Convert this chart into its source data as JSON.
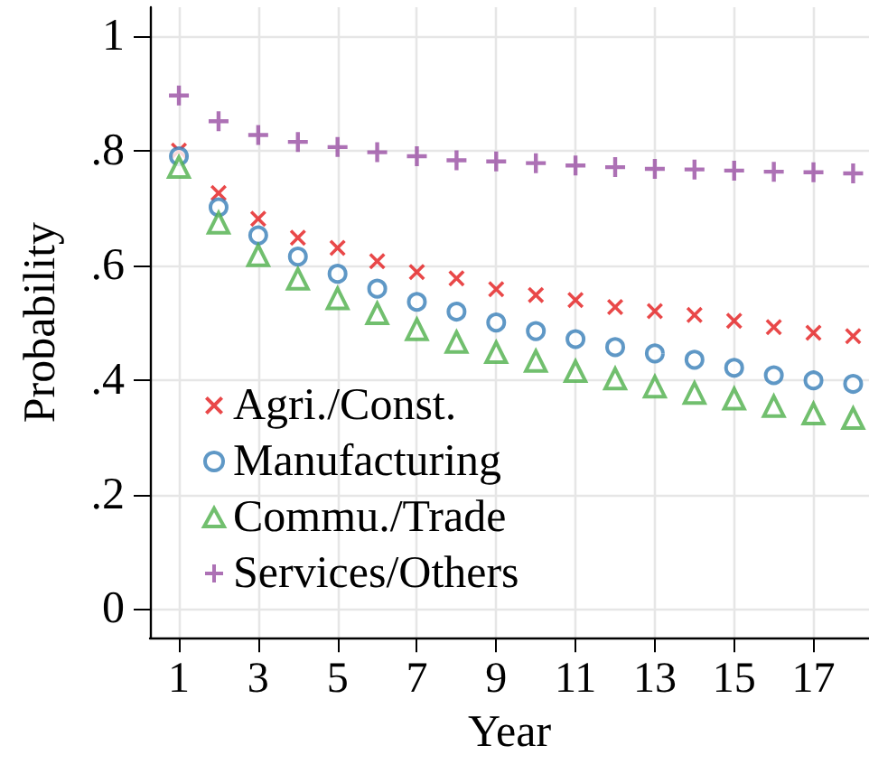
{
  "chart_data": {
    "type": "scatter",
    "xlabel": "Year",
    "ylabel": "Probability",
    "x": [
      1,
      2,
      3,
      4,
      5,
      6,
      7,
      8,
      9,
      10,
      11,
      12,
      13,
      14,
      15,
      16,
      17,
      18
    ],
    "xlim": [
      0.27,
      18.4
    ],
    "xticks": [
      1,
      3,
      5,
      7,
      9,
      11,
      13,
      15,
      17
    ],
    "ylim": [
      -0.05,
      1.05
    ],
    "yticks": [
      0,
      {
        "value": 0.2,
        "label": ".2"
      },
      {
        "value": 0.4,
        "label": ".4"
      },
      {
        "value": 0.6,
        "label": ".6"
      },
      {
        "value": 0.8,
        "label": ".8"
      },
      1
    ],
    "grid": true,
    "legend": "bottom left",
    "series": [
      {
        "name": "Agri./Const.",
        "color": "#e41a1c",
        "marker": "x",
        "values": [
          0.8,
          0.726,
          0.681,
          0.648,
          0.63,
          0.607,
          0.588,
          0.577,
          0.558,
          0.548,
          0.539,
          0.527,
          0.52,
          0.513,
          0.503,
          0.492,
          0.482,
          0.476
        ]
      },
      {
        "name": "Manufacturing",
        "color": "#377eb8",
        "marker": "circle",
        "values": [
          0.79,
          0.701,
          0.652,
          0.615,
          0.585,
          0.559,
          0.536,
          0.519,
          0.5,
          0.485,
          0.471,
          0.457,
          0.446,
          0.435,
          0.421,
          0.408,
          0.399,
          0.393
        ]
      },
      {
        "name": "Commu./Trade",
        "color": "#4daf4a",
        "marker": "triangle",
        "values": [
          0.771,
          0.674,
          0.617,
          0.576,
          0.542,
          0.516,
          0.488,
          0.466,
          0.448,
          0.433,
          0.415,
          0.402,
          0.388,
          0.377,
          0.367,
          0.354,
          0.341,
          0.333
        ]
      },
      {
        "name": "Services/Others",
        "color": "#984ea3",
        "marker": "cross",
        "values": [
          0.896,
          0.851,
          0.827,
          0.815,
          0.806,
          0.797,
          0.79,
          0.783,
          0.781,
          0.778,
          0.774,
          0.771,
          0.768,
          0.767,
          0.765,
          0.763,
          0.762,
          0.76
        ]
      }
    ]
  }
}
